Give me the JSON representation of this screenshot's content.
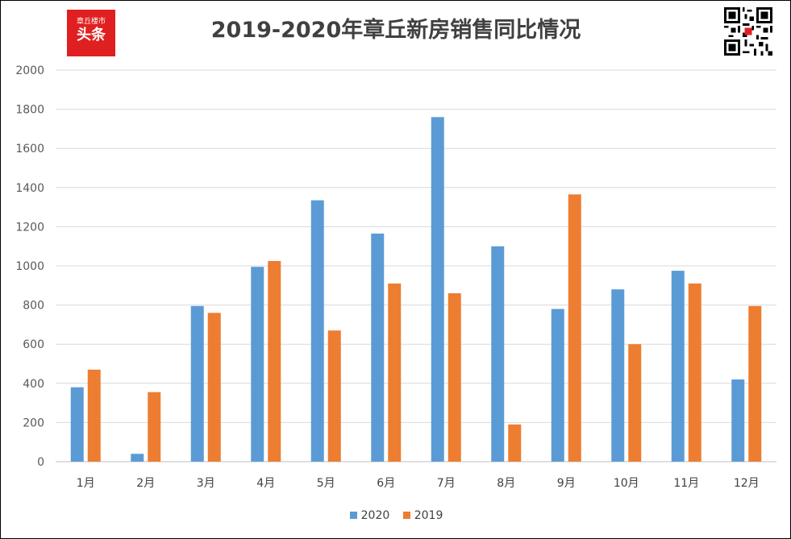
{
  "logo": {
    "top": "章丘楼市",
    "main": "头条"
  },
  "chart_data": {
    "type": "bar",
    "title": "2019-2020年章丘新房销售同比情况",
    "categories": [
      "1月",
      "2月",
      "3月",
      "4月",
      "5月",
      "6月",
      "7月",
      "8月",
      "9月",
      "10月",
      "11月",
      "12月"
    ],
    "series": [
      {
        "name": "2020",
        "color": "#5b9bd5",
        "values": [
          380,
          40,
          795,
          995,
          1335,
          1165,
          1760,
          1100,
          780,
          880,
          975,
          420
        ]
      },
      {
        "name": "2019",
        "color": "#ed7d31",
        "values": [
          470,
          355,
          760,
          1025,
          670,
          910,
          860,
          190,
          1365,
          600,
          910,
          795
        ]
      }
    ],
    "xlabel": "",
    "ylabel": "",
    "ylim": [
      0,
      2000
    ],
    "yticks": [
      0,
      200,
      400,
      600,
      800,
      1000,
      1200,
      1400,
      1600,
      1800,
      2000
    ],
    "grid": true,
    "legend_position": "bottom"
  }
}
